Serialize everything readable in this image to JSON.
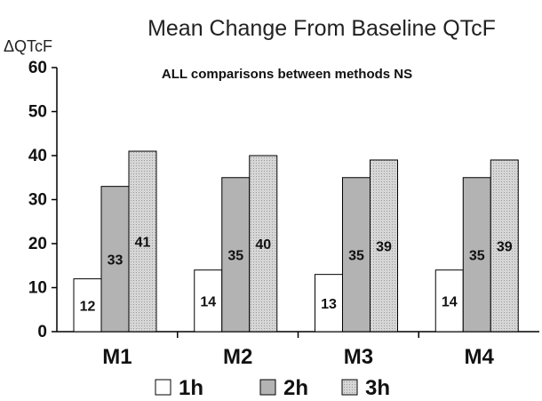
{
  "chart_data": {
    "type": "bar",
    "title": "Mean Change From Baseline QTcF",
    "ylabel": "ΔQTcF",
    "xlabel": "",
    "annotation": "ALL comparisons between methods NS",
    "categories": [
      "M1",
      "M2",
      "M3",
      "M4"
    ],
    "ylim": [
      0,
      60
    ],
    "yticks": [
      "0",
      "10",
      "20",
      "30",
      "40",
      "50",
      "60"
    ],
    "grid": false,
    "legend_position": "bottom",
    "series": [
      {
        "name": "1h",
        "values": [
          12,
          14,
          13,
          14
        ],
        "labels": [
          "12",
          "14",
          "13",
          "14"
        ],
        "color": "#ffffff",
        "pattern": "none"
      },
      {
        "name": "2h",
        "values": [
          33,
          35,
          35,
          35
        ],
        "labels": [
          "33",
          "35",
          "35",
          "35"
        ],
        "color": "#b3b3b3",
        "pattern": "none"
      },
      {
        "name": "3h",
        "values": [
          41,
          40,
          39,
          39
        ],
        "labels": [
          "41",
          "40",
          "39",
          "39"
        ],
        "color": "#d9d9d9",
        "pattern": "dotted"
      }
    ]
  }
}
